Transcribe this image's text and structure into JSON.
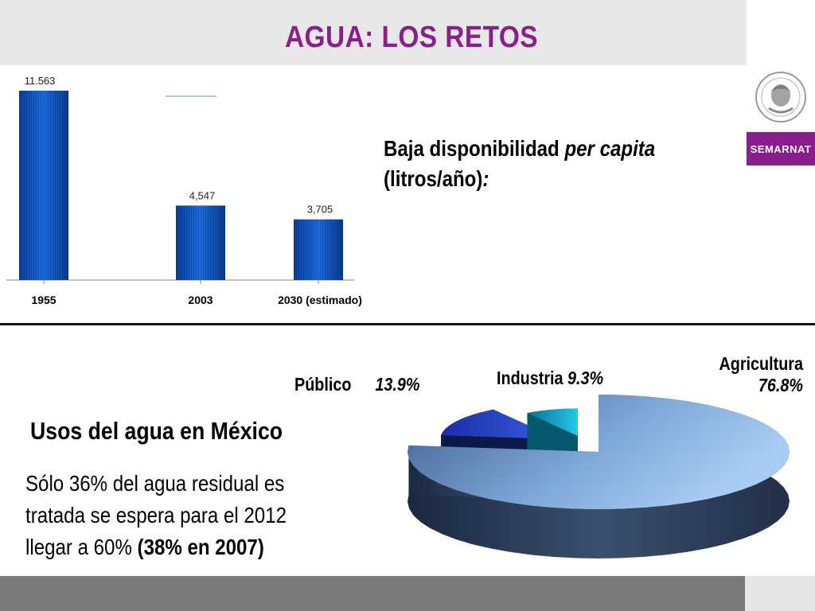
{
  "slide": {
    "title": "AGUA: LOS RETOS",
    "brand": "SEMARNAT",
    "headline": {
      "part1": "Baja disponibilidad ",
      "part2_italic": "per capita",
      "part3": "(litros/año)",
      "part4_italic": ":"
    },
    "uses": {
      "title": "Usos del agua en México",
      "line1": "Sólo 36% del agua residual es",
      "line2": "tratada se espera para el 2012",
      "line3_normal": "llegar a 60% ",
      "line3_bold": "(38% en 2007)"
    }
  },
  "colors": {
    "title": "#8a1f8c",
    "brand_bg": "#8a1f8c",
    "bar": "#1560c8",
    "pie_agricultura": "#7aa6d6",
    "pie_publico": "#2a47c8",
    "pie_industria": "#16b4d8"
  },
  "chart_data": [
    {
      "type": "bar",
      "categories": [
        "1955",
        "2003",
        "2030 (estimado)"
      ],
      "values": [
        11563,
        4547,
        3705
      ],
      "value_labels": [
        "11.563",
        "4,547",
        "3,705"
      ],
      "title": "",
      "xlabel": "",
      "ylabel": "",
      "ylim": [
        0,
        11563
      ],
      "grid": false,
      "legend": "none"
    },
    {
      "type": "pie",
      "categories": [
        "Agricultura",
        "Público",
        "Industria"
      ],
      "values": [
        76.8,
        13.9,
        9.3
      ],
      "value_labels": [
        "76.8%",
        "13.9%",
        "9.3%"
      ],
      "title": "",
      "style": "3d-exploded",
      "legend": "labels-outside"
    }
  ]
}
